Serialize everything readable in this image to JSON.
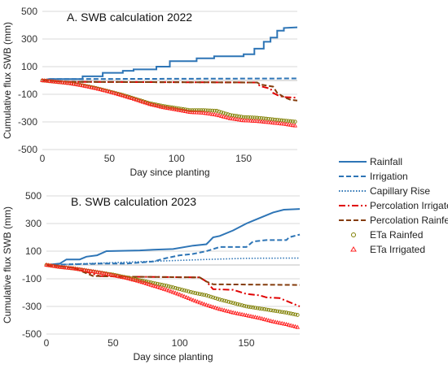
{
  "chart_data": [
    {
      "type": "line",
      "title": "A. SWB calculation 2022",
      "xlabel": "Day since planting",
      "ylabel": "Cumulative flux SWB (mm)",
      "xlim": [
        0,
        190
      ],
      "ylim": [
        -500,
        500
      ],
      "x_ticks": [
        0,
        50,
        100,
        150
      ],
      "y_ticks": [
        -500,
        -300,
        -100,
        100,
        300,
        500
      ],
      "grid": "horizontal",
      "series": [
        {
          "name": "Rainfall",
          "color": "#2e75b6",
          "style": "solid",
          "points": [
            [
              0,
              0
            ],
            [
              5,
              10
            ],
            [
              30,
              10
            ],
            [
              30,
              30
            ],
            [
              45,
              30
            ],
            [
              45,
              55
            ],
            [
              60,
              55
            ],
            [
              60,
              70
            ],
            [
              68,
              70
            ],
            [
              68,
              80
            ],
            [
              85,
              80
            ],
            [
              85,
              100
            ],
            [
              95,
              100
            ],
            [
              95,
              140
            ],
            [
              115,
              140
            ],
            [
              115,
              160
            ],
            [
              128,
              160
            ],
            [
              128,
              175
            ],
            [
              150,
              175
            ],
            [
              150,
              190
            ],
            [
              158,
              190
            ],
            [
              158,
              230
            ],
            [
              165,
              230
            ],
            [
              165,
              280
            ],
            [
              170,
              280
            ],
            [
              170,
              310
            ],
            [
              175,
              310
            ],
            [
              175,
              360
            ],
            [
              180,
              360
            ],
            [
              180,
              380
            ],
            [
              190,
              385
            ]
          ]
        },
        {
          "name": "Irrigation",
          "color": "#2e75b6",
          "style": "dashed",
          "points": [
            [
              0,
              0
            ],
            [
              5,
              10
            ],
            [
              190,
              15
            ]
          ]
        },
        {
          "name": "Percolation Irrigated",
          "color": "#e00000",
          "style": "dashdot",
          "points": [
            [
              0,
              0
            ],
            [
              20,
              -10
            ],
            [
              160,
              -15
            ],
            [
              162,
              -40
            ],
            [
              170,
              -60
            ],
            [
              172,
              -90
            ],
            [
              176,
              -110
            ],
            [
              180,
              -120
            ],
            [
              190,
              -125
            ]
          ]
        },
        {
          "name": "Percolation Rainfed",
          "color": "#843c0c",
          "style": "dashed",
          "points": [
            [
              0,
              0
            ],
            [
              20,
              -10
            ],
            [
              160,
              -15
            ],
            [
              163,
              -30
            ],
            [
              172,
              -45
            ],
            [
              175,
              -90
            ],
            [
              180,
              -120
            ],
            [
              185,
              -140
            ],
            [
              190,
              -145
            ]
          ]
        },
        {
          "name": "ETa Rainfed",
          "color": "#7f7f00",
          "style": "circles",
          "points": [
            [
              0,
              0
            ],
            [
              10,
              -10
            ],
            [
              20,
              -20
            ],
            [
              30,
              -35
            ],
            [
              40,
              -55
            ],
            [
              50,
              -80
            ],
            [
              60,
              -105
            ],
            [
              70,
              -135
            ],
            [
              80,
              -165
            ],
            [
              90,
              -185
            ],
            [
              100,
              -200
            ],
            [
              110,
              -215
            ],
            [
              120,
              -215
            ],
            [
              130,
              -220
            ],
            [
              140,
              -250
            ],
            [
              150,
              -265
            ],
            [
              160,
              -270
            ],
            [
              170,
              -280
            ],
            [
              180,
              -290
            ],
            [
              190,
              -300
            ]
          ]
        },
        {
          "name": "ETa Irrigated",
          "color": "#ff2020",
          "style": "triangles",
          "points": [
            [
              0,
              0
            ],
            [
              10,
              -10
            ],
            [
              20,
              -20
            ],
            [
              30,
              -37
            ],
            [
              40,
              -58
            ],
            [
              50,
              -82
            ],
            [
              60,
              -110
            ],
            [
              70,
              -140
            ],
            [
              80,
              -172
            ],
            [
              90,
              -195
            ],
            [
              100,
              -212
            ],
            [
              110,
              -230
            ],
            [
              120,
              -235
            ],
            [
              130,
              -250
            ],
            [
              140,
              -275
            ],
            [
              150,
              -290
            ],
            [
              160,
              -295
            ],
            [
              170,
              -305
            ],
            [
              180,
              -315
            ],
            [
              190,
              -330
            ]
          ]
        }
      ]
    },
    {
      "type": "line",
      "title": "B. SWB calculation 2023",
      "xlabel": "Day since planting",
      "ylabel": "Cumulative flux SWB (mm)",
      "xlim": [
        0,
        190
      ],
      "ylim": [
        -500,
        500
      ],
      "x_ticks": [
        0,
        50,
        100,
        150
      ],
      "y_ticks": [
        -500,
        -300,
        -100,
        100,
        300,
        500
      ],
      "grid": "horizontal",
      "series": [
        {
          "name": "Rainfall",
          "color": "#2e75b6",
          "style": "solid",
          "points": [
            [
              0,
              0
            ],
            [
              10,
              10
            ],
            [
              15,
              40
            ],
            [
              25,
              40
            ],
            [
              30,
              60
            ],
            [
              38,
              70
            ],
            [
              45,
              100
            ],
            [
              70,
              105
            ],
            [
              80,
              110
            ],
            [
              95,
              115
            ],
            [
              110,
              140
            ],
            [
              120,
              150
            ],
            [
              125,
              200
            ],
            [
              130,
              210
            ],
            [
              140,
              250
            ],
            [
              150,
              300
            ],
            [
              155,
              320
            ],
            [
              160,
              340
            ],
            [
              165,
              360
            ],
            [
              170,
              380
            ],
            [
              178,
              400
            ],
            [
              190,
              405
            ]
          ]
        },
        {
          "name": "Irrigation",
          "color": "#2e75b6",
          "style": "dashed",
          "points": [
            [
              0,
              0
            ],
            [
              40,
              10
            ],
            [
              60,
              10
            ],
            [
              80,
              25
            ],
            [
              90,
              50
            ],
            [
              100,
              70
            ],
            [
              110,
              80
            ],
            [
              120,
              100
            ],
            [
              130,
              130
            ],
            [
              150,
              130
            ],
            [
              155,
              170
            ],
            [
              165,
              180
            ],
            [
              180,
              180
            ],
            [
              182,
              200
            ],
            [
              190,
              220
            ]
          ]
        },
        {
          "name": "Capillary Rise",
          "color": "#2e75b6",
          "style": "dotted",
          "points": [
            [
              0,
              0
            ],
            [
              30,
              10
            ],
            [
              60,
              20
            ],
            [
              90,
              30
            ],
            [
              120,
              40
            ],
            [
              150,
              48
            ],
            [
              190,
              50
            ]
          ]
        },
        {
          "name": "Percolation Irrigated",
          "color": "#e00000",
          "style": "dashdot",
          "points": [
            [
              0,
              0
            ],
            [
              20,
              -20
            ],
            [
              40,
              -80
            ],
            [
              60,
              -85
            ],
            [
              115,
              -90
            ],
            [
              120,
              -120
            ],
            [
              125,
              -175
            ],
            [
              140,
              -180
            ],
            [
              150,
              -210
            ],
            [
              160,
              -220
            ],
            [
              165,
              -235
            ],
            [
              175,
              -240
            ],
            [
              185,
              -280
            ],
            [
              190,
              -300
            ]
          ]
        },
        {
          "name": "Percolation Rainfed",
          "color": "#843c0c",
          "style": "dashed",
          "points": [
            [
              0,
              0
            ],
            [
              20,
              -20
            ],
            [
              35,
              -80
            ],
            [
              60,
              -85
            ],
            [
              115,
              -90
            ],
            [
              120,
              -120
            ],
            [
              125,
              -140
            ],
            [
              190,
              -145
            ]
          ]
        },
        {
          "name": "ETa Rainfed",
          "color": "#7f7f00",
          "style": "circles",
          "points": [
            [
              0,
              0
            ],
            [
              10,
              -15
            ],
            [
              20,
              -25
            ],
            [
              30,
              -40
            ],
            [
              40,
              -55
            ],
            [
              50,
              -70
            ],
            [
              60,
              -90
            ],
            [
              70,
              -110
            ],
            [
              80,
              -130
            ],
            [
              90,
              -150
            ],
            [
              100,
              -175
            ],
            [
              110,
              -200
            ],
            [
              120,
              -220
            ],
            [
              130,
              -250
            ],
            [
              140,
              -275
            ],
            [
              150,
              -300
            ],
            [
              160,
              -315
            ],
            [
              170,
              -330
            ],
            [
              180,
              -345
            ],
            [
              190,
              -365
            ]
          ]
        },
        {
          "name": "ETa Irrigated",
          "color": "#ff2020",
          "style": "triangles",
          "points": [
            [
              0,
              0
            ],
            [
              10,
              -15
            ],
            [
              20,
              -25
            ],
            [
              30,
              -40
            ],
            [
              40,
              -55
            ],
            [
              50,
              -75
            ],
            [
              60,
              -95
            ],
            [
              70,
              -120
            ],
            [
              80,
              -150
            ],
            [
              90,
              -180
            ],
            [
              100,
              -215
            ],
            [
              110,
              -255
            ],
            [
              120,
              -290
            ],
            [
              130,
              -320
            ],
            [
              140,
              -345
            ],
            [
              150,
              -365
            ],
            [
              160,
              -385
            ],
            [
              170,
              -410
            ],
            [
              180,
              -430
            ],
            [
              190,
              -455
            ]
          ]
        }
      ]
    }
  ],
  "legend": {
    "placement": "right",
    "items": [
      {
        "label": "Rainfall",
        "color": "#2e75b6",
        "style": "solid"
      },
      {
        "label": "Irrigation",
        "color": "#2e75b6",
        "style": "dashed"
      },
      {
        "label": "Capillary Rise",
        "color": "#2e75b6",
        "style": "dotted"
      },
      {
        "label": "Percolation Irrigated",
        "color": "#e00000",
        "style": "dashdot"
      },
      {
        "label": "Percolation Rainfed",
        "color": "#843c0c",
        "style": "dashed"
      },
      {
        "label": "ETa Rainfed",
        "color": "#7f7f00",
        "style": "circles"
      },
      {
        "label": "ETa Irrigated",
        "color": "#ff2020",
        "style": "triangles"
      }
    ]
  }
}
